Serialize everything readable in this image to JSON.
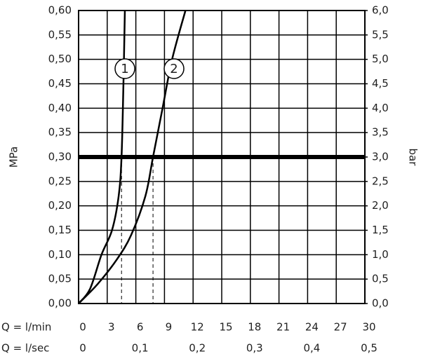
{
  "chart_data": {
    "type": "line",
    "y_label": "MPa",
    "y2_label": "bar",
    "x_label": "Q = l/min",
    "x2_label": "Q = l/sec",
    "xlim": [
      0,
      30
    ],
    "xticks": [
      0,
      3,
      6,
      9,
      12,
      15,
      18,
      21,
      24,
      27,
      30
    ],
    "x2lim": [
      0,
      0.5
    ],
    "x2ticks": [
      0,
      {
        "value": 0.1,
        "label": "0,1"
      },
      {
        "value": 0.2,
        "label": "0,2"
      },
      {
        "value": 0.3,
        "label": "0,3"
      },
      {
        "value": 0.4,
        "label": "0,4"
      },
      {
        "value": 0.5,
        "label": "0,5"
      }
    ],
    "ylim": [
      0,
      0.6
    ],
    "yticks": [
      {
        "value": 0,
        "label": "0,00"
      },
      {
        "value": 0.05,
        "label": "0,05"
      },
      {
        "value": 0.1,
        "label": "0,10"
      },
      {
        "value": 0.15,
        "label": "0,15"
      },
      {
        "value": 0.2,
        "label": "0,20"
      },
      {
        "value": 0.25,
        "label": "0,25"
      },
      {
        "value": 0.3,
        "label": "0,30"
      },
      {
        "value": 0.35,
        "label": "0,35"
      },
      {
        "value": 0.4,
        "label": "0,40"
      },
      {
        "value": 0.45,
        "label": "0,45"
      },
      {
        "value": 0.5,
        "label": "0,50"
      },
      {
        "value": 0.55,
        "label": "0,55"
      },
      {
        "value": 0.6,
        "label": "0,60"
      }
    ],
    "y2lim": [
      0,
      6
    ],
    "y2ticks": [
      {
        "value": 0,
        "label": "0,0"
      },
      {
        "value": 0.5,
        "label": "0,5"
      },
      {
        "value": 1,
        "label": "1,0"
      },
      {
        "value": 1.5,
        "label": "1,5"
      },
      {
        "value": 2,
        "label": "2,0"
      },
      {
        "value": 2.5,
        "label": "2,5"
      },
      {
        "value": 3,
        "label": "3,0"
      },
      {
        "value": 3.5,
        "label": "3,5"
      },
      {
        "value": 4,
        "label": "4,0"
      },
      {
        "value": 4.5,
        "label": "4,5"
      },
      {
        "value": 5,
        "label": "5,0"
      },
      {
        "value": 5.5,
        "label": "5,5"
      },
      {
        "value": 6,
        "label": "6,0"
      }
    ],
    "grid": true,
    "reference_line": 0.3,
    "dashed_x": [
      4.5,
      7.8
    ],
    "series": [
      {
        "name": "1",
        "color": "#000000",
        "x": [
          0,
          1.2,
          2.4,
          3.5,
          4.2,
          4.5,
          4.7,
          4.85
        ],
        "values": [
          0,
          0.03,
          0.1,
          0.15,
          0.22,
          0.3,
          0.45,
          0.6
        ]
      },
      {
        "name": "2",
        "color": "#000000",
        "x": [
          0,
          2,
          4,
          5.5,
          7,
          7.8,
          8.8,
          9.8,
          11.2
        ],
        "values": [
          0,
          0.04,
          0.09,
          0.14,
          0.22,
          0.3,
          0.4,
          0.5,
          0.6
        ]
      }
    ]
  }
}
